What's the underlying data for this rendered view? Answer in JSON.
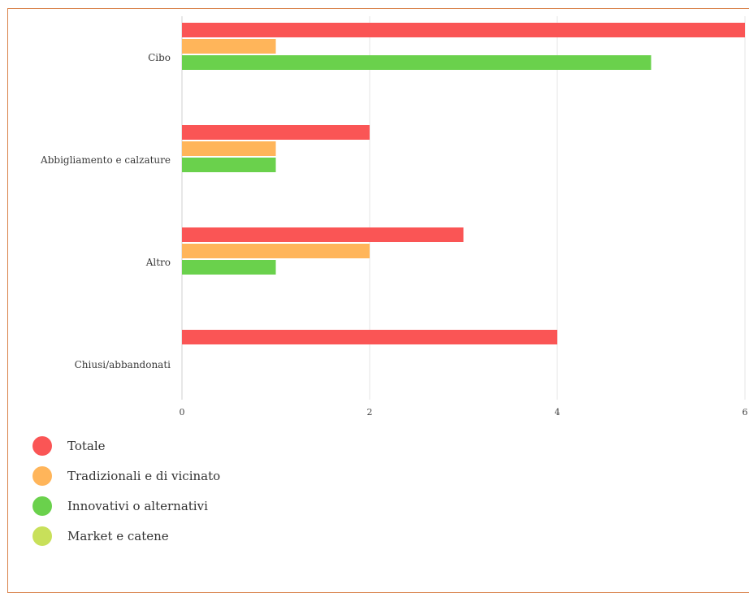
{
  "chart_data": {
    "type": "bar",
    "orientation": "horizontal",
    "categories": [
      "Cibo",
      "Abbigliamento e calzature",
      "Altro",
      "Chiusi/abbandonati"
    ],
    "series": [
      {
        "name": "Totale",
        "color": "#fa5555",
        "values": [
          6,
          2,
          3,
          4
        ]
      },
      {
        "name": "Tradizionali e di vicinato",
        "color": "#ffb55a",
        "values": [
          1,
          1,
          2,
          0
        ]
      },
      {
        "name": "Innovativi o alternativi",
        "color": "#6ad14c",
        "values": [
          5,
          1,
          1,
          0
        ]
      },
      {
        "name": "Market e catene",
        "color": "#c8e05a",
        "values": [
          0,
          0,
          0,
          0
        ]
      }
    ],
    "xlim": [
      0,
      6
    ],
    "xticks": [
      "0",
      "2",
      "4",
      "6"
    ],
    "grid": true,
    "legend_position": "bottom-left"
  }
}
